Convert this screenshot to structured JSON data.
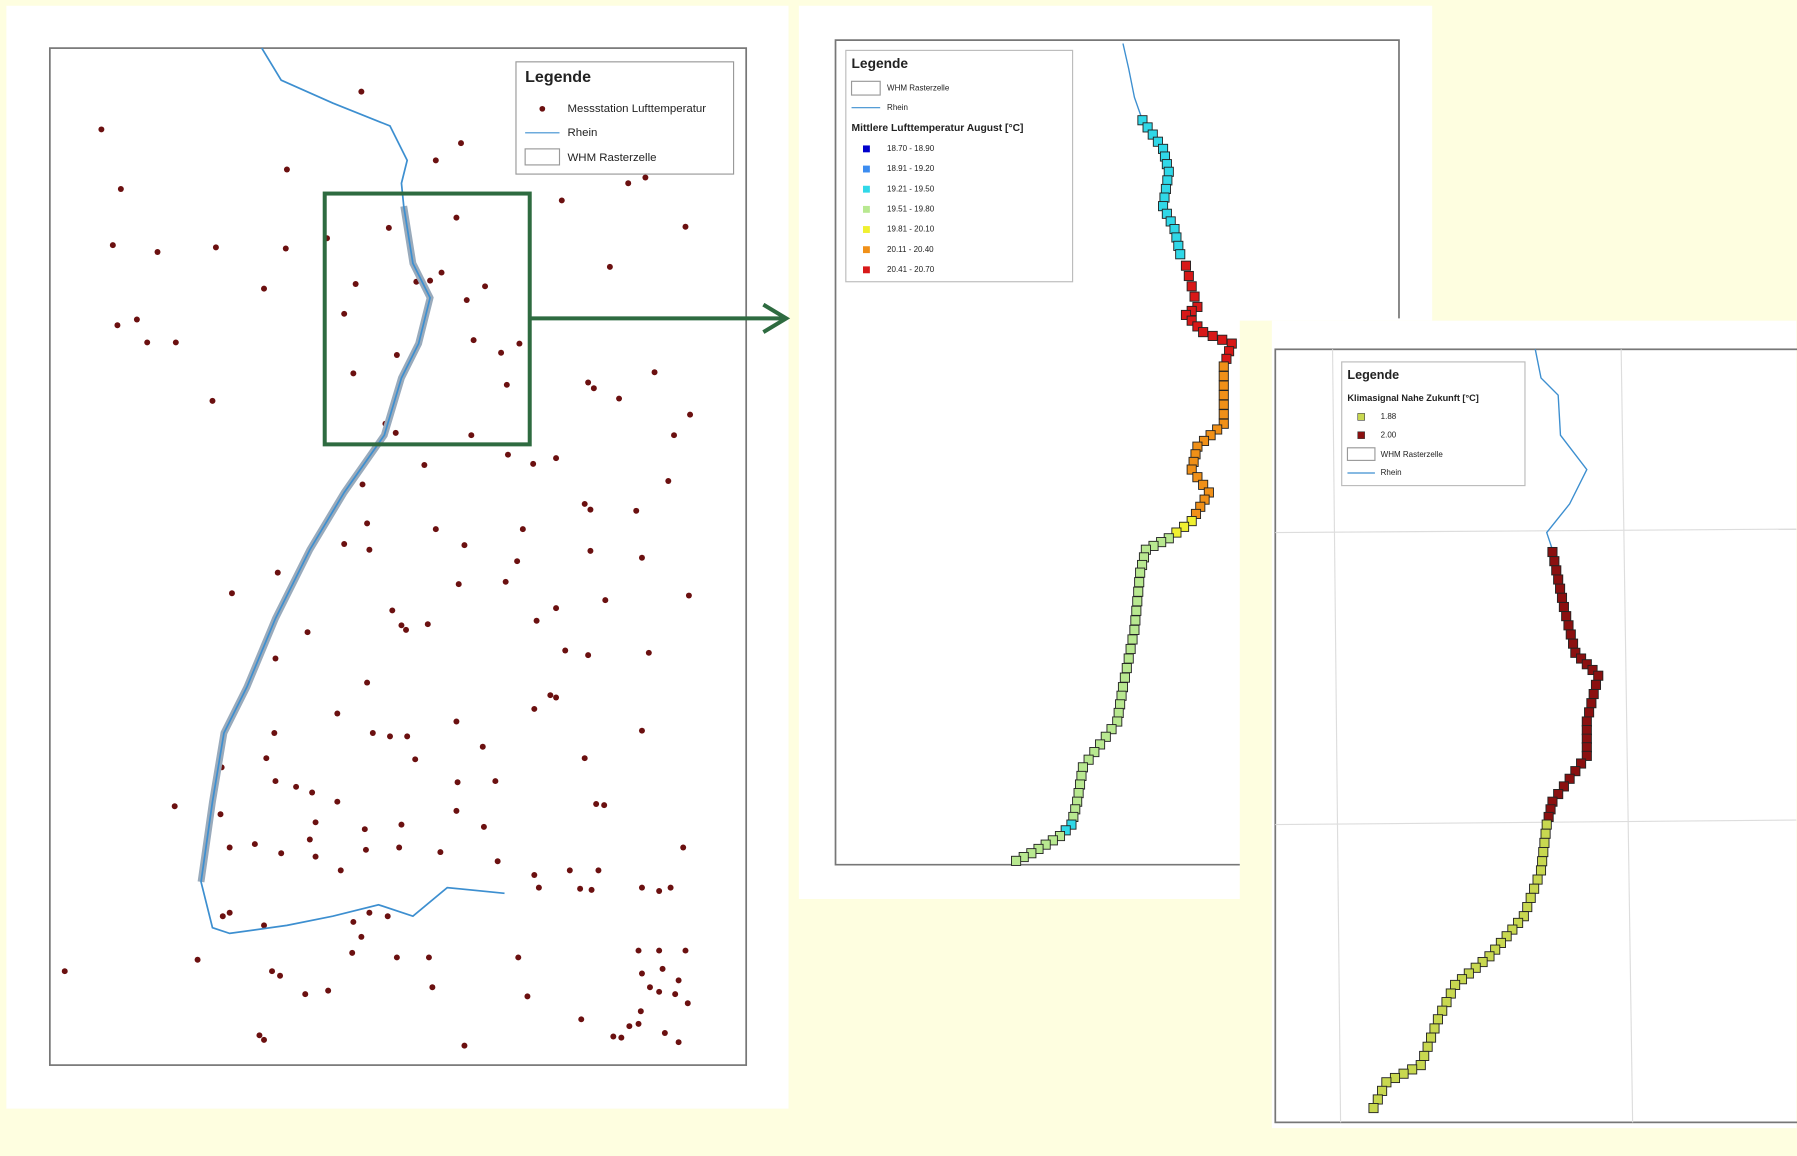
{
  "map1": {
    "legend": {
      "title": "Legende",
      "items": [
        "Messstation Lufttemperatur",
        "Rhein",
        "WHM Rasterzelle"
      ]
    }
  },
  "map2": {
    "legend": {
      "title": "Legende",
      "items": [
        "WHM Rasterzelle",
        "Rhein"
      ],
      "subtitle": "Mittlere Lufttemperatur August [°C]",
      "classes": [
        {
          "label": "18.70 - 18.90",
          "color": "#0000cc"
        },
        {
          "label": "18.91 - 19.20",
          "color": "#3c8cf0"
        },
        {
          "label": "19.21 - 19.50",
          "color": "#30d8e8"
        },
        {
          "label": "19.51 - 19.80",
          "color": "#b8e890"
        },
        {
          "label": "19.81 - 20.10",
          "color": "#f0f030"
        },
        {
          "label": "20.11 - 20.40",
          "color": "#f09018"
        },
        {
          "label": "20.41 - 20.70",
          "color": "#d81818"
        }
      ]
    }
  },
  "map3": {
    "legend": {
      "title": "Legende",
      "subtitle": "Klimasignal Nahe Zukunft [°C]",
      "classes": [
        {
          "label": "1.88",
          "color": "#c8d850"
        },
        {
          "label": "2.00",
          "color": "#8b1010"
        }
      ],
      "items": [
        "WHM Rasterzelle",
        "Rhein"
      ]
    }
  }
}
